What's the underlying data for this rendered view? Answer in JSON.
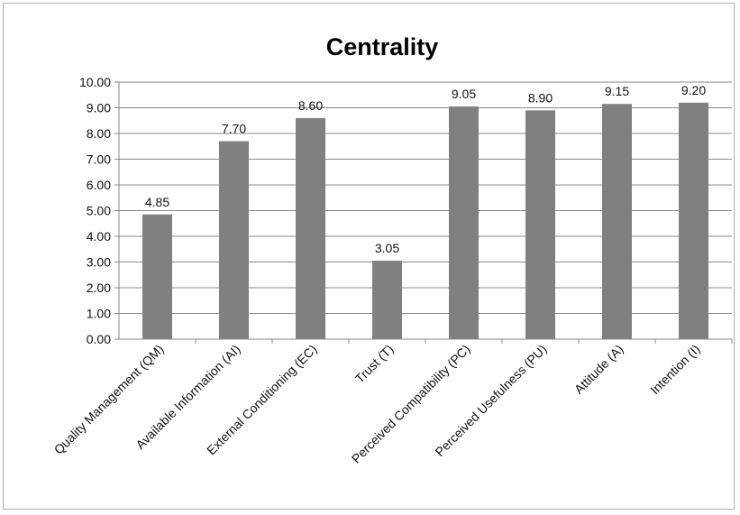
{
  "chart_data": {
    "type": "bar",
    "title": "Centrality",
    "xlabel": "",
    "ylabel": "",
    "ylim": [
      0,
      10
    ],
    "ytick_step": 1,
    "ytick_labels": [
      "0.00",
      "1.00",
      "2.00",
      "3.00",
      "4.00",
      "5.00",
      "6.00",
      "7.00",
      "8.00",
      "9.00",
      "10.00"
    ],
    "grid": true,
    "legend": "none",
    "categories": [
      "Quality Management (QM)",
      "Available Information (AI)",
      "External Conditioning (EC)",
      "Trust (T)",
      "Perceived Compatibility (PC)",
      "Perceived Usefulness (PU)",
      "Attitude (A)",
      "Intention (I)"
    ],
    "values": [
      4.85,
      7.7,
      8.6,
      3.05,
      9.05,
      8.9,
      9.15,
      9.2
    ],
    "value_labels": [
      "4.85",
      "7.70",
      "8.60",
      "3.05",
      "9.05",
      "8.90",
      "9.15",
      "9.20"
    ],
    "bar_color": "#808080",
    "gridline_color": "#8a8a8a"
  }
}
